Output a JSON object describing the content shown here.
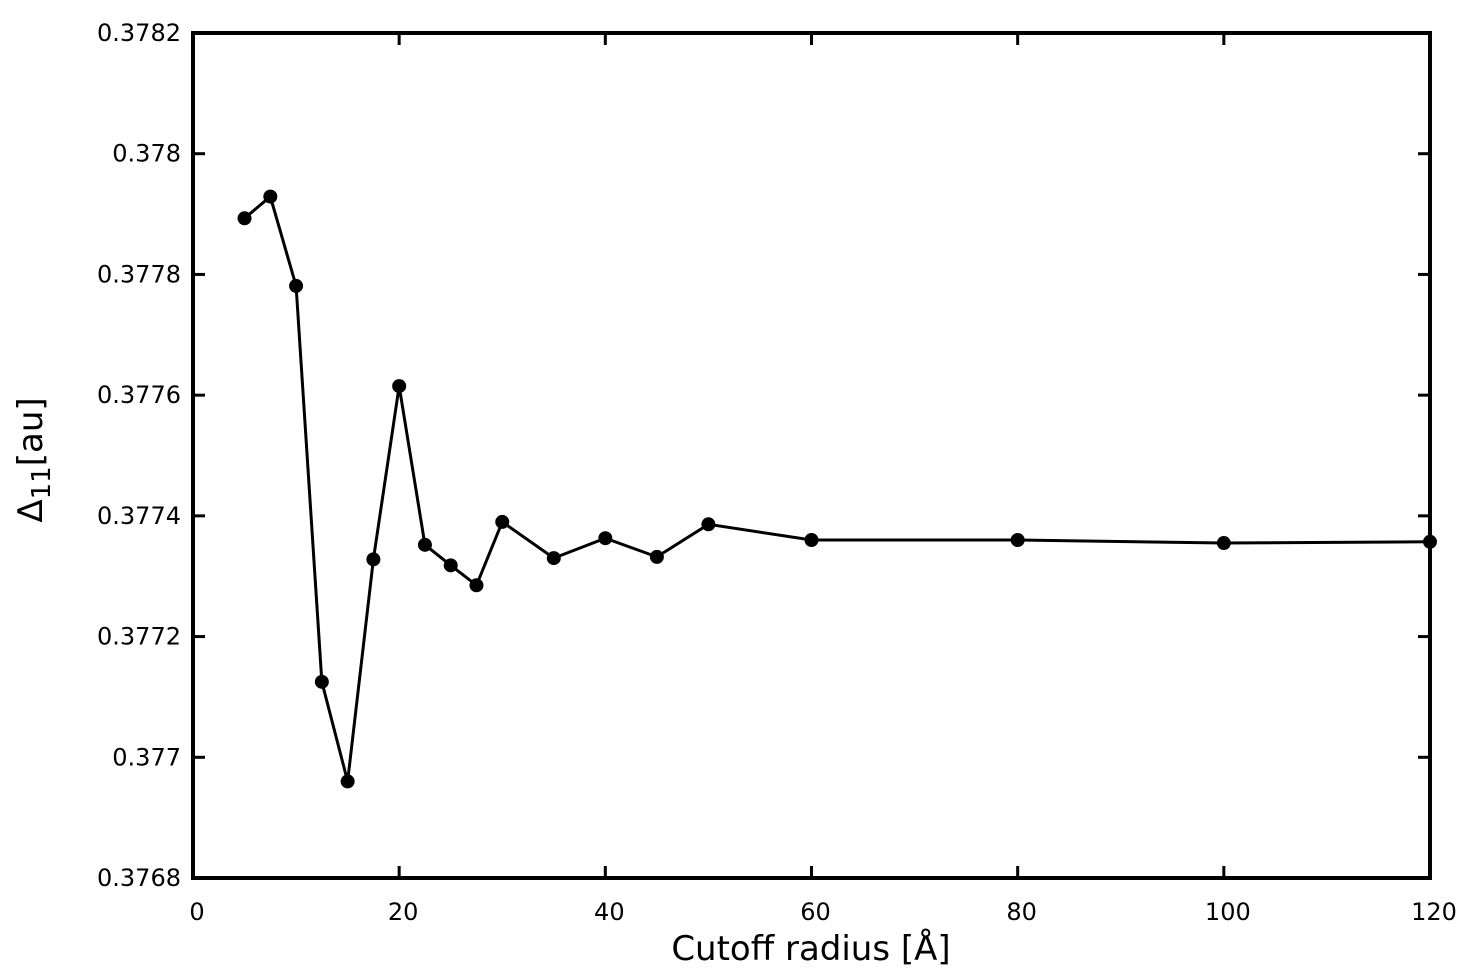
{
  "chart_data": {
    "type": "line",
    "xlabel": "Cutoff radius [Å]",
    "ylabel": {
      "symbol": "Δ",
      "subscript": "11",
      "unit": "[au]"
    },
    "x": [
      5,
      7.5,
      10,
      12.5,
      15,
      17.5,
      20,
      22.5,
      25,
      27.5,
      30,
      35,
      40,
      45,
      50,
      60,
      80,
      100,
      120
    ],
    "series": [
      {
        "color": "#000000",
        "values": [
          0.377893,
          0.377929,
          0.377781,
          0.377125,
          0.37696,
          0.377328,
          0.377615,
          0.377352,
          0.377318,
          0.377285,
          0.37739,
          0.37733,
          0.377363,
          0.377332,
          0.377386,
          0.37736,
          0.37736,
          0.377355,
          0.377357
        ]
      }
    ],
    "xlim": [
      0,
      120
    ],
    "xticks": [
      0,
      20,
      40,
      60,
      80,
      100,
      120
    ],
    "ylim": [
      0.3768,
      0.3782
    ],
    "yticks": [
      0.3768,
      0.377,
      0.3772,
      0.3774,
      0.3776,
      0.3778,
      0.378,
      0.3782
    ],
    "grid": false,
    "markers": true
  }
}
